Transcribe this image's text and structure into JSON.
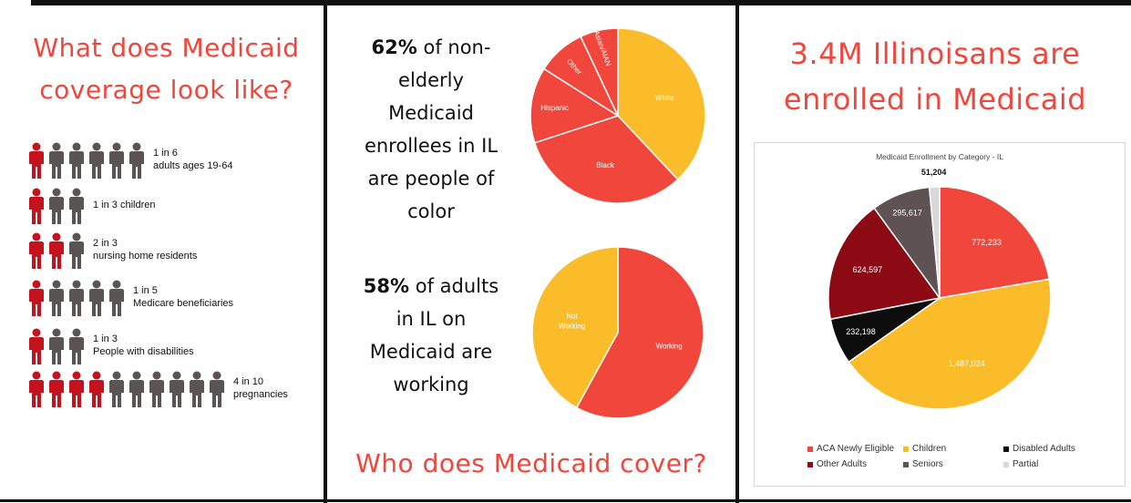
{
  "left_panel": {
    "title_line1": "What does Medicaid",
    "title_line2": "coverage look like?",
    "rows": [
      {
        "red": 1,
        "total": 6,
        "line1": "1 in 6",
        "line2": "adults ages 19-64"
      },
      {
        "red": 1,
        "total": 3,
        "line1": "1 in 3 children",
        "line2": ""
      },
      {
        "red": 2,
        "total": 3,
        "line1": "2 in 3",
        "line2": "nursing home residents"
      },
      {
        "red": 1,
        "total": 5,
        "line1": "1 in 5",
        "line2": "Medicare beneficiaries"
      },
      {
        "red": 1,
        "total": 3,
        "line1": "1 in 3",
        "line2": "People with disabilities"
      },
      {
        "red": 4,
        "total": 10,
        "line1": "4 in 10",
        "line2": "pregnancies"
      }
    ]
  },
  "middle_panel": {
    "stat1_bold": "62%",
    "stat1_lines": [
      "of non-",
      "elderly",
      "Medicaid",
      "enrollees in IL",
      "are people of",
      "color"
    ],
    "stat2_bold": "58%",
    "stat2_lines": [
      "of adults",
      "in IL on",
      "Medicaid are",
      "working"
    ],
    "footer_title": "Who does Medicaid cover?"
  },
  "right_panel": {
    "title_line1": "3.4M Illinoisans are",
    "title_line2": "enrolled in Medicaid"
  },
  "colors": {
    "red": "#f0463c",
    "dark_red": "#8b0a14",
    "yellow": "#fbbc2a",
    "black": "#0d0d0d",
    "gray": "#5e5352",
    "light_gray": "#d9d9d9",
    "person_red": "#c4121e",
    "person_gray": "#5a5454"
  },
  "chart_data": [
    {
      "type": "pie",
      "title": "",
      "slices": [
        {
          "label": "White",
          "value": 38
        },
        {
          "label": "Black",
          "value": 32
        },
        {
          "label": "Hispanic",
          "value": 14
        },
        {
          "label": "Other",
          "value": 9
        },
        {
          "label": "Asian/AIAN",
          "value": 7
        }
      ]
    },
    {
      "type": "pie",
      "title": "",
      "slices": [
        {
          "label": "Working",
          "value": 58
        },
        {
          "label": "Not Working",
          "value": 42
        }
      ]
    },
    {
      "type": "pie",
      "title": "Medicaid Enrollment by Category - IL",
      "legend_position": "bottom",
      "slices": [
        {
          "label": "ACA Newly Eligible",
          "value": 772233,
          "value_label": "772,233"
        },
        {
          "label": "Children",
          "value": 1487024,
          "value_label": "1,487,024"
        },
        {
          "label": "Disabled Adults",
          "value": 232198,
          "value_label": "232,198"
        },
        {
          "label": "Other Adults",
          "value": 624597,
          "value_label": "624,597"
        },
        {
          "label": "Seniors",
          "value": 295617,
          "value_label": "295,617"
        },
        {
          "label": "Partial",
          "value": 51204,
          "value_label": "51,204"
        }
      ]
    }
  ]
}
